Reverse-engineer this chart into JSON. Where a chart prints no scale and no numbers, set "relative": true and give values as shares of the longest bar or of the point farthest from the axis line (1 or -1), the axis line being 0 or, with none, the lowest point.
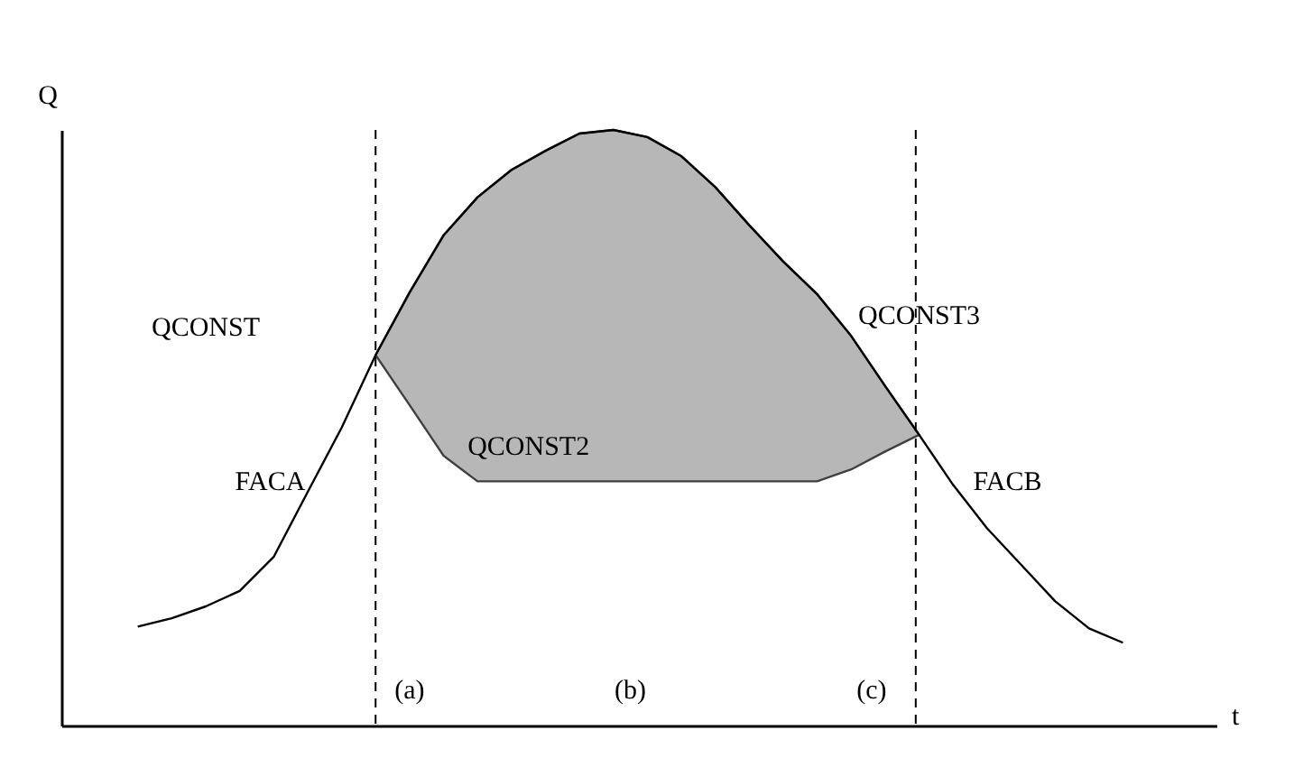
{
  "chart_data": {
    "type": "line",
    "relative": true,
    "ylabel": "Q",
    "xlabel": "t",
    "tick_labels": false,
    "grid": false,
    "line_style": "solid",
    "categories": [
      null,
      null,
      null,
      null,
      null,
      null,
      null,
      null,
      null,
      null,
      null,
      null,
      null,
      null,
      null,
      null,
      null,
      null,
      null,
      null,
      null,
      null,
      null,
      null,
      null,
      null,
      null,
      null,
      null,
      null
    ],
    "series": [
      {
        "color": "#000000",
        "values": [
          0.166,
          0.18,
          0.2,
          0.226,
          0.283,
          0.392,
          0.5,
          0.622,
          0.727,
          0.823,
          0.887,
          0.933,
          0.965,
          0.994,
          1.0,
          0.988,
          0.956,
          0.904,
          0.84,
          0.779,
          0.724,
          0.654,
          0.57,
          0.488,
          0.404,
          0.331,
          0.27,
          0.209,
          0.163,
          0.139
        ],
        "upper": [
          null,
          null,
          null,
          null,
          null,
          null,
          null,
          0.622,
          0.727,
          0.823,
          0.887,
          0.933,
          0.965,
          0.994,
          1.0,
          0.988,
          0.956,
          0.904,
          0.84,
          0.779,
          0.724,
          0.654,
          0.57,
          0.488,
          null,
          null,
          null,
          null,
          null,
          null
        ],
        "lower": [
          null,
          null,
          null,
          null,
          null,
          null,
          null,
          0.622,
          0.538,
          0.453,
          0.41,
          0.41,
          0.41,
          0.41,
          0.41,
          0.41,
          0.41,
          0.41,
          0.41,
          0.41,
          0.41,
          0.43,
          0.46,
          0.488,
          null,
          null,
          null,
          null,
          null,
          null
        ]
      }
    ],
    "annotations": [
      "QCONST",
      "FACA",
      "QCONST2",
      "QCONST3",
      "FACB",
      "(a)",
      "(b)",
      "(c)"
    ]
  }
}
